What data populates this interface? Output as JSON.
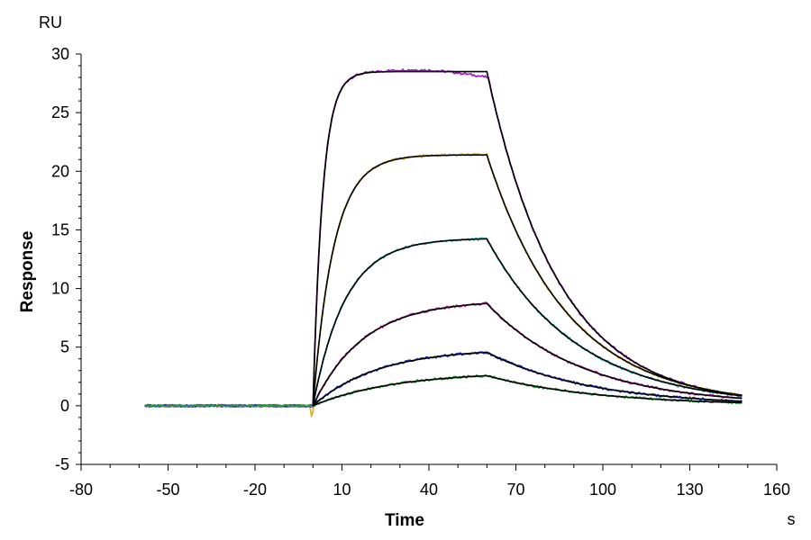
{
  "chart_data": {
    "type": "line",
    "title": "",
    "xlabel": "Time",
    "ylabel": "Response",
    "x_unit": "s",
    "y_unit": "RU",
    "xlim": [
      -80,
      160
    ],
    "ylim": [
      -5,
      30
    ],
    "x_ticks": [
      -80,
      -50,
      -20,
      10,
      40,
      70,
      100,
      130,
      160
    ],
    "y_ticks": [
      -5,
      0,
      5,
      10,
      15,
      20,
      25,
      30
    ],
    "grid": false,
    "legend": "none",
    "baseline_start": -58,
    "injection_start": 0,
    "injection_end": 60,
    "end_time": 148,
    "fit_color": "#000000",
    "series": [
      {
        "plateau": 28.5,
        "kon_rate": 0.3,
        "koff_rate": 0.04,
        "color": "#a020c0"
      },
      {
        "plateau": 21.4,
        "kon_rate": 0.14,
        "koff_rate": 0.036,
        "color": "#e0b020"
      },
      {
        "plateau": 14.3,
        "kon_rate": 0.09,
        "koff_rate": 0.032,
        "color": "#20b0b0"
      },
      {
        "plateau": 9.0,
        "kon_rate": 0.058,
        "koff_rate": 0.03,
        "color": "#c020a0"
      },
      {
        "plateau": 4.9,
        "kon_rate": 0.045,
        "koff_rate": 0.028,
        "color": "#2030c0"
      },
      {
        "plateau": 2.9,
        "kon_rate": 0.036,
        "koff_rate": 0.026,
        "color": "#20a040"
      }
    ]
  }
}
